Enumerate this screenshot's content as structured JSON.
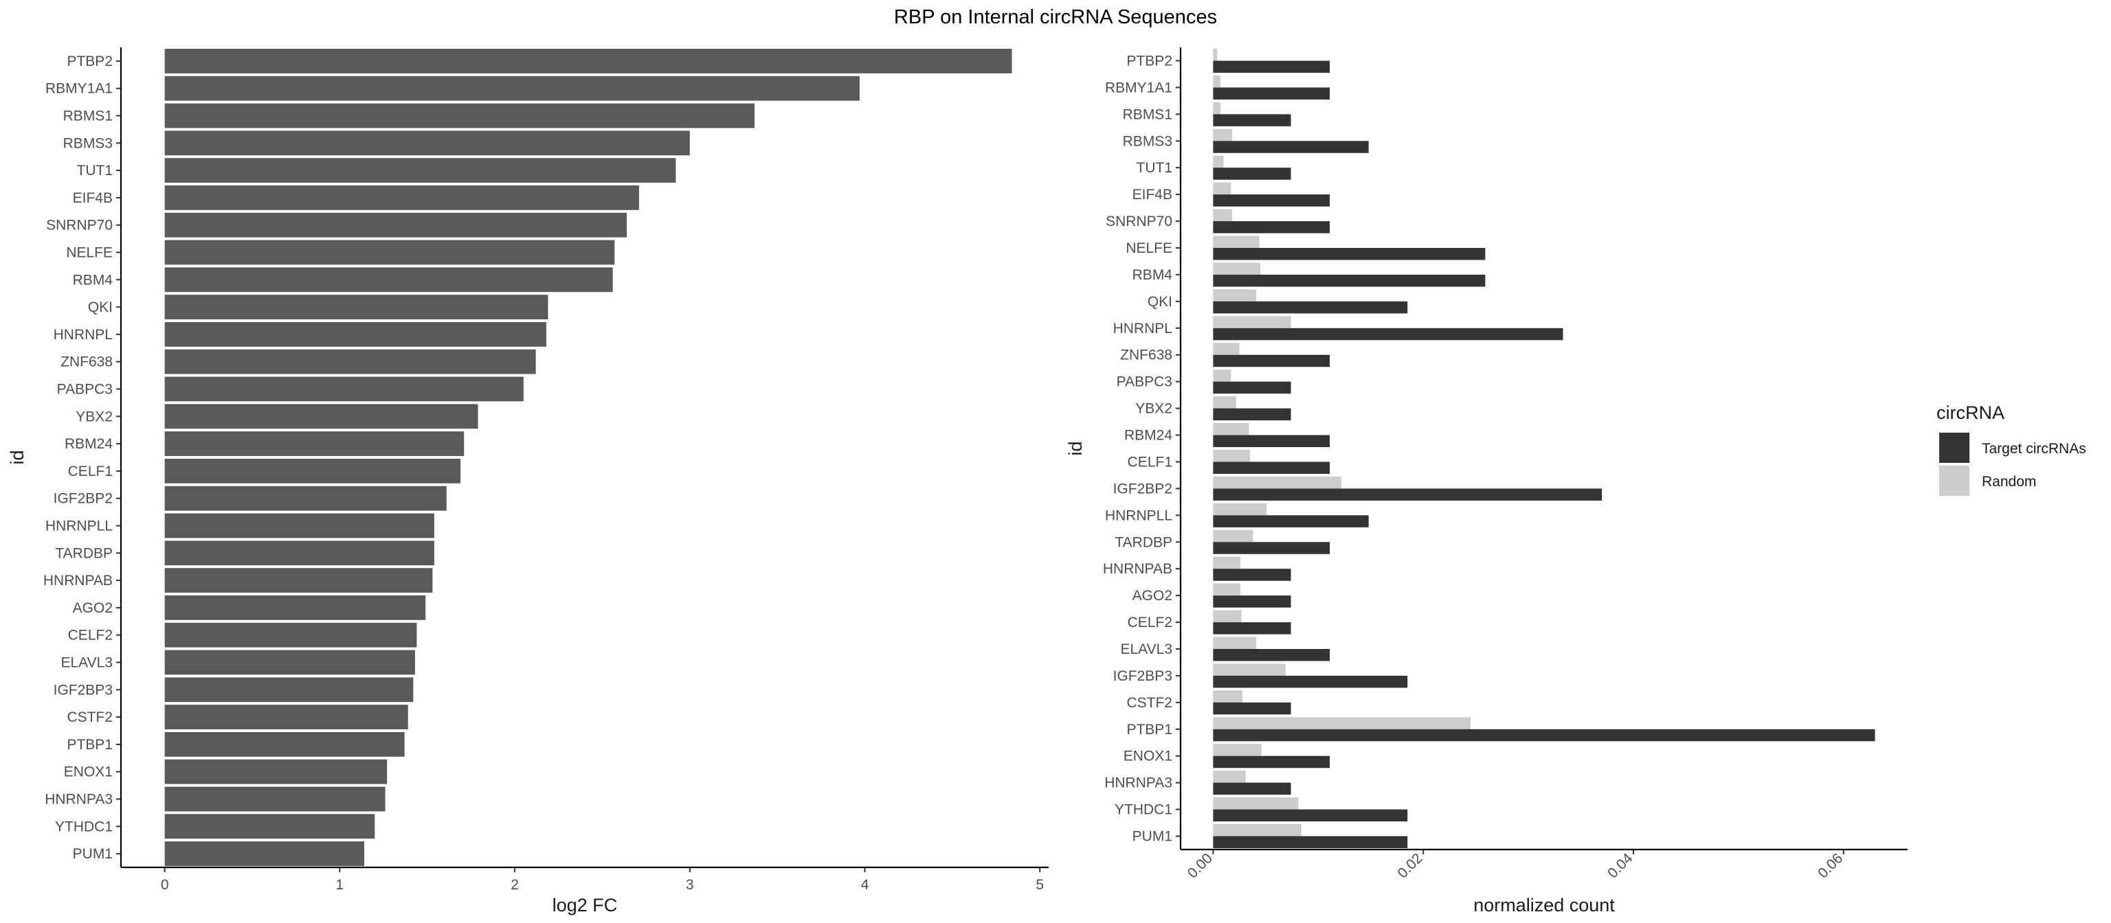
{
  "title": "RBP on Internal circRNA Sequences",
  "colors": {
    "left_bar": "#595959",
    "target": "#333333",
    "random": "#cccccc",
    "axis": "#000000"
  },
  "chart_data": [
    {
      "type": "bar",
      "orientation": "horizontal",
      "categories": [
        "PTBP2",
        "RBMY1A1",
        "RBMS1",
        "RBMS3",
        "TUT1",
        "EIF4B",
        "SNRNP70",
        "NELFE",
        "RBM4",
        "QKI",
        "HNRNPL",
        "ZNF638",
        "PABPC3",
        "YBX2",
        "RBM24",
        "CELF1",
        "IGF2BP2",
        "HNRNPLL",
        "TARDBP",
        "HNRNPAB",
        "AGO2",
        "CELF2",
        "ELAVL3",
        "IGF2BP3",
        "CSTF2",
        "PTBP1",
        "ENOX1",
        "HNRNPA3",
        "YTHDC1",
        "PUM1"
      ],
      "values": [
        4.84,
        3.97,
        3.37,
        3.0,
        2.92,
        2.71,
        2.64,
        2.57,
        2.56,
        2.19,
        2.18,
        2.12,
        2.05,
        1.79,
        1.71,
        1.69,
        1.61,
        1.54,
        1.54,
        1.53,
        1.49,
        1.44,
        1.43,
        1.42,
        1.39,
        1.37,
        1.27,
        1.26,
        1.2,
        1.14
      ],
      "xlabel": "log2 FC",
      "ylabel": "id",
      "xlim": [
        -0.25,
        5.05
      ],
      "xticks": [
        0,
        1,
        2,
        3,
        4,
        5
      ],
      "xtick_labels": [
        "0",
        "1",
        "2",
        "3",
        "4",
        "5"
      ]
    },
    {
      "type": "bar",
      "orientation": "horizontal",
      "grouped": true,
      "categories": [
        "PTBP2",
        "RBMY1A1",
        "RBMS1",
        "RBMS3",
        "TUT1",
        "EIF4B",
        "SNRNP70",
        "NELFE",
        "RBM4",
        "QKI",
        "HNRNPL",
        "ZNF638",
        "PABPC3",
        "YBX2",
        "RBM24",
        "CELF1",
        "IGF2BP2",
        "HNRNPLL",
        "TARDBP",
        "HNRNPAB",
        "AGO2",
        "CELF2",
        "ELAVL3",
        "IGF2BP3",
        "CSTF2",
        "PTBP1",
        "ENOX1",
        "HNRNPA3",
        "YTHDC1",
        "PUM1"
      ],
      "series": [
        {
          "name": "Target circRNAs",
          "values": [
            0.0111,
            0.0111,
            0.0074,
            0.0148,
            0.0074,
            0.0111,
            0.0111,
            0.0259,
            0.0259,
            0.0185,
            0.0333,
            0.0111,
            0.0074,
            0.0074,
            0.0111,
            0.0111,
            0.037,
            0.0148,
            0.0111,
            0.0074,
            0.0074,
            0.0074,
            0.0111,
            0.0185,
            0.0074,
            0.063,
            0.0111,
            0.0074,
            0.0185,
            0.0185
          ]
        },
        {
          "name": "Random",
          "values": [
            0.0004,
            0.0007,
            0.0007,
            0.0018,
            0.001,
            0.0017,
            0.0018,
            0.0044,
            0.0045,
            0.0041,
            0.0074,
            0.0025,
            0.0017,
            0.0022,
            0.0034,
            0.0035,
            0.0122,
            0.0051,
            0.0038,
            0.0026,
            0.0026,
            0.0027,
            0.0041,
            0.0069,
            0.0028,
            0.0245,
            0.0046,
            0.0031,
            0.0081,
            0.0084
          ]
        }
      ],
      "xlabel": "normalized count",
      "ylabel": "id",
      "xlim": [
        -0.0031,
        0.0661
      ],
      "xticks": [
        0.0,
        0.02,
        0.04,
        0.06
      ],
      "xtick_labels": [
        "0.00",
        "0.02",
        "0.04",
        "0.06"
      ],
      "legend_title": "circRNA",
      "legend_position": "right"
    }
  ]
}
